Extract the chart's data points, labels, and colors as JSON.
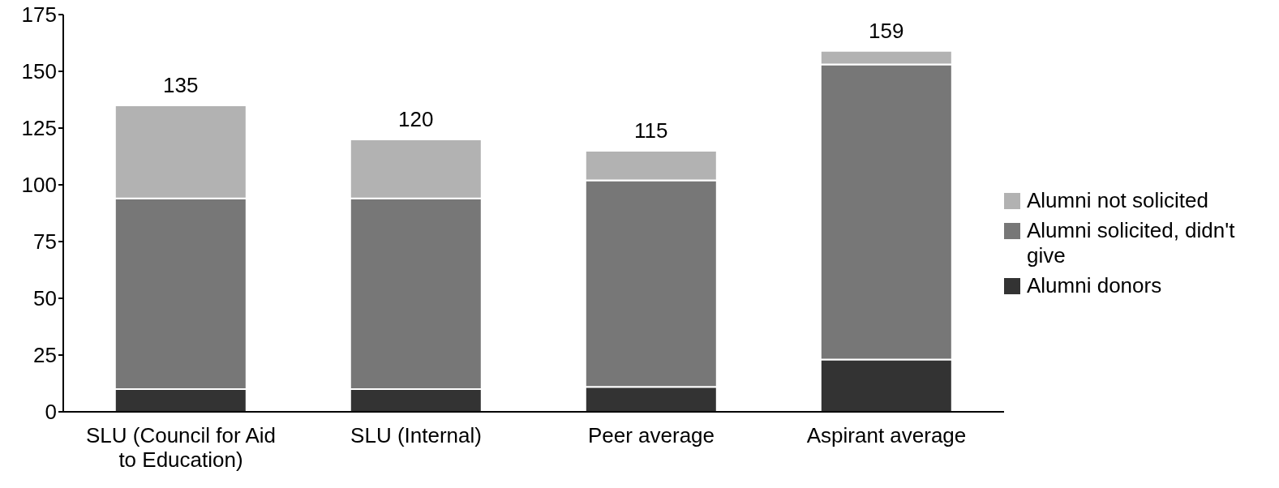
{
  "chart_data": {
    "type": "bar",
    "stacked": true,
    "categories": [
      "SLU (Council for Aid to Education)",
      "SLU (Internal)",
      "Peer average",
      "Aspirant average"
    ],
    "series": [
      {
        "name": "Alumni donors",
        "color": "#333333",
        "values": [
          10,
          10,
          11,
          23
        ]
      },
      {
        "name": "Alumni solicited, didn't give",
        "color": "#777777",
        "values": [
          84,
          84,
          91,
          130
        ]
      },
      {
        "name": "Alumni not solicited",
        "color": "#b2b2b2",
        "values": [
          41,
          26,
          13,
          6
        ]
      }
    ],
    "totals": [
      "135",
      "120",
      "115",
      "159"
    ],
    "ylim": [
      0,
      175
    ],
    "yticks": [
      0,
      25,
      50,
      75,
      100,
      125,
      150,
      175
    ],
    "grid": false,
    "legend": "right"
  }
}
